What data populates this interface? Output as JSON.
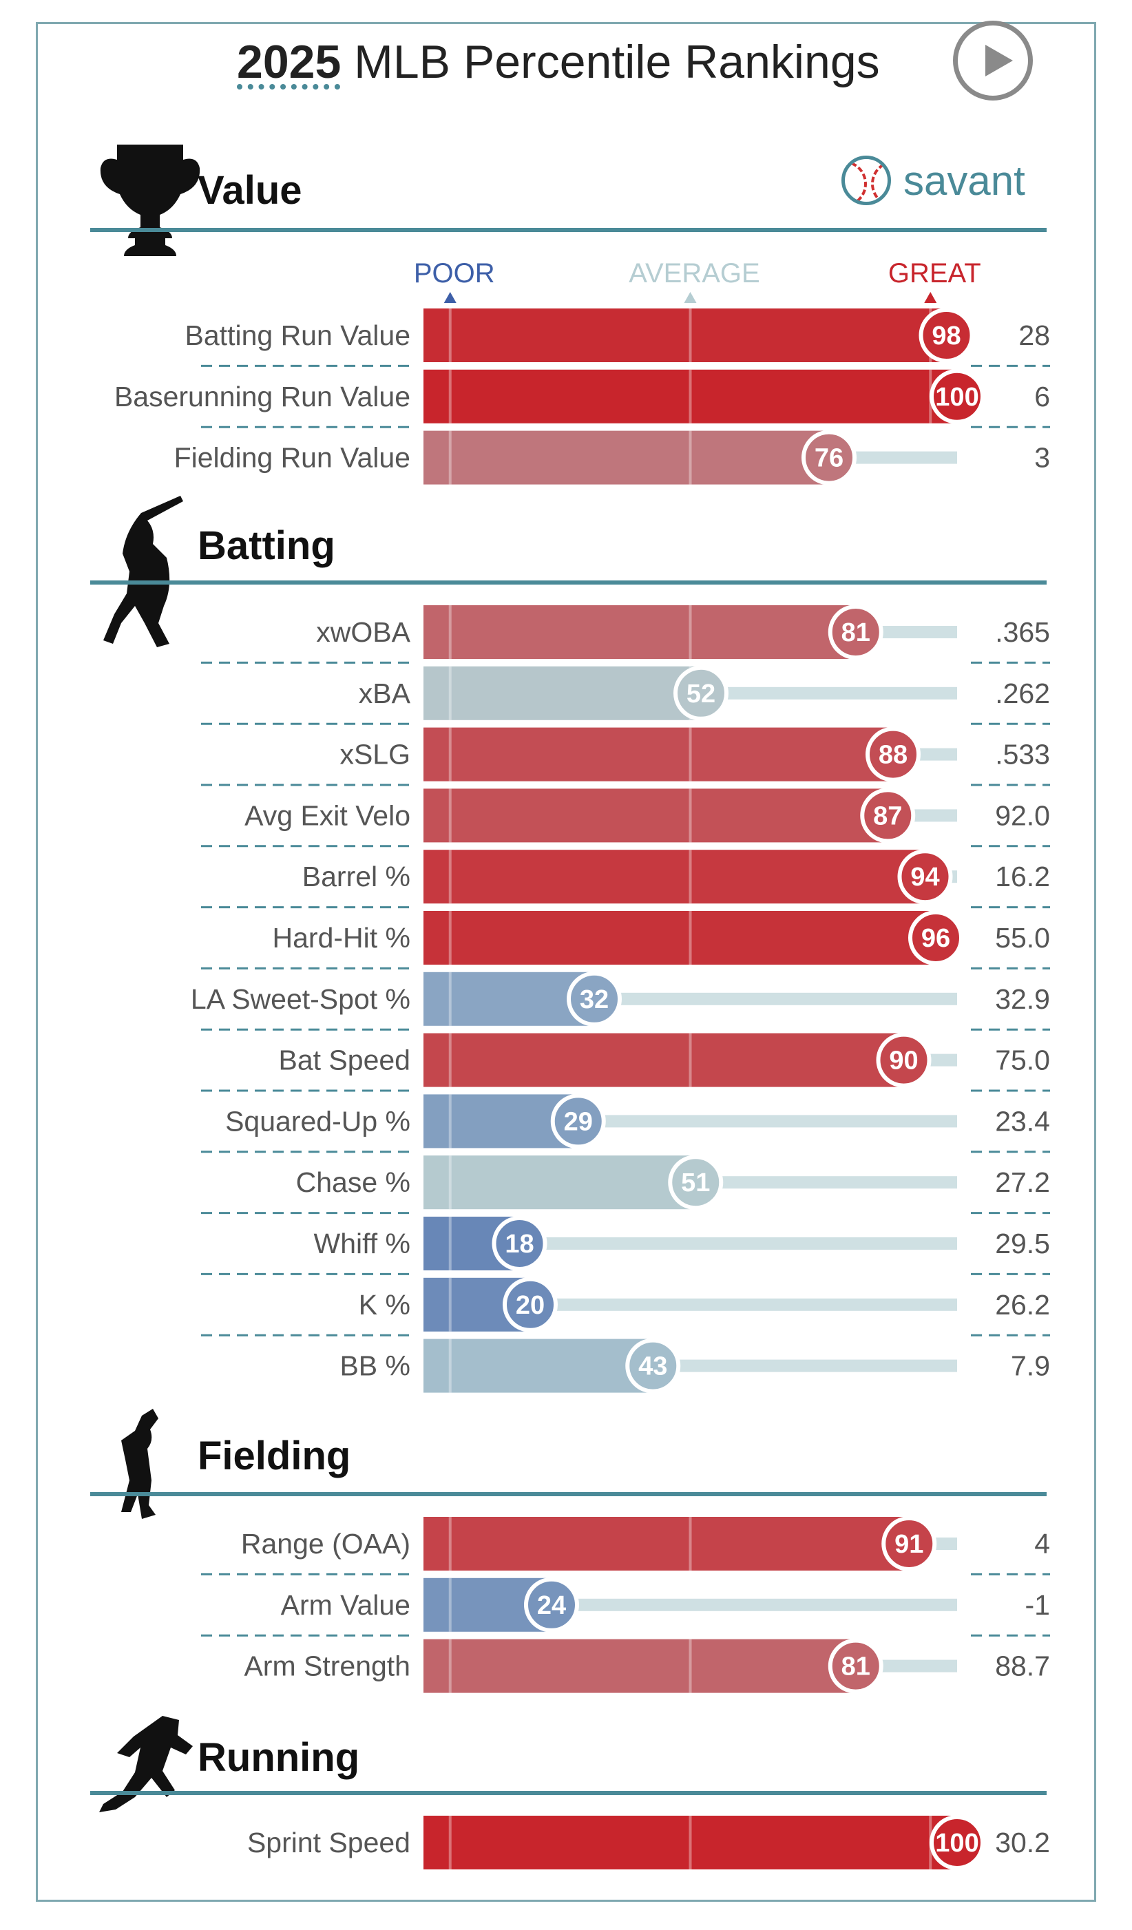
{
  "title": {
    "year": "2025",
    "text": " MLB Percentile Rankings"
  },
  "logo": {
    "text": "savant"
  },
  "axis": {
    "poor": "POOR",
    "average": "AVERAGE",
    "great": "GREAT"
  },
  "colors": {
    "poor": "#3d5fa8",
    "average": "#b5cdd2",
    "great": "#c8252c",
    "section_line": "#4a8a98",
    "track": "#cfe0e3"
  },
  "chart_data": {
    "type": "bar",
    "title": "2025 MLB Percentile Rankings",
    "xlim": [
      0,
      100
    ],
    "sections": [
      {
        "name": "Value",
        "icon": "trophy-icon",
        "metrics": [
          {
            "label": "Batting Run Value",
            "percentile": 98,
            "value": "28"
          },
          {
            "label": "Baserunning Run Value",
            "percentile": 100,
            "value": "6"
          },
          {
            "label": "Fielding Run Value",
            "percentile": 76,
            "value": "3"
          }
        ]
      },
      {
        "name": "Batting",
        "icon": "batter-icon",
        "metrics": [
          {
            "label": "xwOBA",
            "percentile": 81,
            "value": ".365"
          },
          {
            "label": "xBA",
            "percentile": 52,
            "value": ".262"
          },
          {
            "label": "xSLG",
            "percentile": 88,
            "value": ".533"
          },
          {
            "label": "Avg Exit Velo",
            "percentile": 87,
            "value": "92.0"
          },
          {
            "label": "Barrel %",
            "percentile": 94,
            "value": "16.2"
          },
          {
            "label": "Hard-Hit %",
            "percentile": 96,
            "value": "55.0"
          },
          {
            "label": "LA Sweet-Spot %",
            "percentile": 32,
            "value": "32.9"
          },
          {
            "label": "Bat Speed",
            "percentile": 90,
            "value": "75.0"
          },
          {
            "label": "Squared-Up %",
            "percentile": 29,
            "value": "23.4"
          },
          {
            "label": "Chase %",
            "percentile": 51,
            "value": "27.2"
          },
          {
            "label": "Whiff %",
            "percentile": 18,
            "value": "29.5"
          },
          {
            "label": "K %",
            "percentile": 20,
            "value": "26.2"
          },
          {
            "label": "BB %",
            "percentile": 43,
            "value": "7.9"
          }
        ]
      },
      {
        "name": "Fielding",
        "icon": "fielder-icon",
        "metrics": [
          {
            "label": "Range (OAA)",
            "percentile": 91,
            "value": "4"
          },
          {
            "label": "Arm Value",
            "percentile": 24,
            "value": "-1"
          },
          {
            "label": "Arm Strength",
            "percentile": 81,
            "value": "88.7"
          }
        ]
      },
      {
        "name": "Running",
        "icon": "runner-icon",
        "metrics": [
          {
            "label": "Sprint Speed",
            "percentile": 100,
            "value": "30.2"
          }
        ]
      }
    ]
  }
}
